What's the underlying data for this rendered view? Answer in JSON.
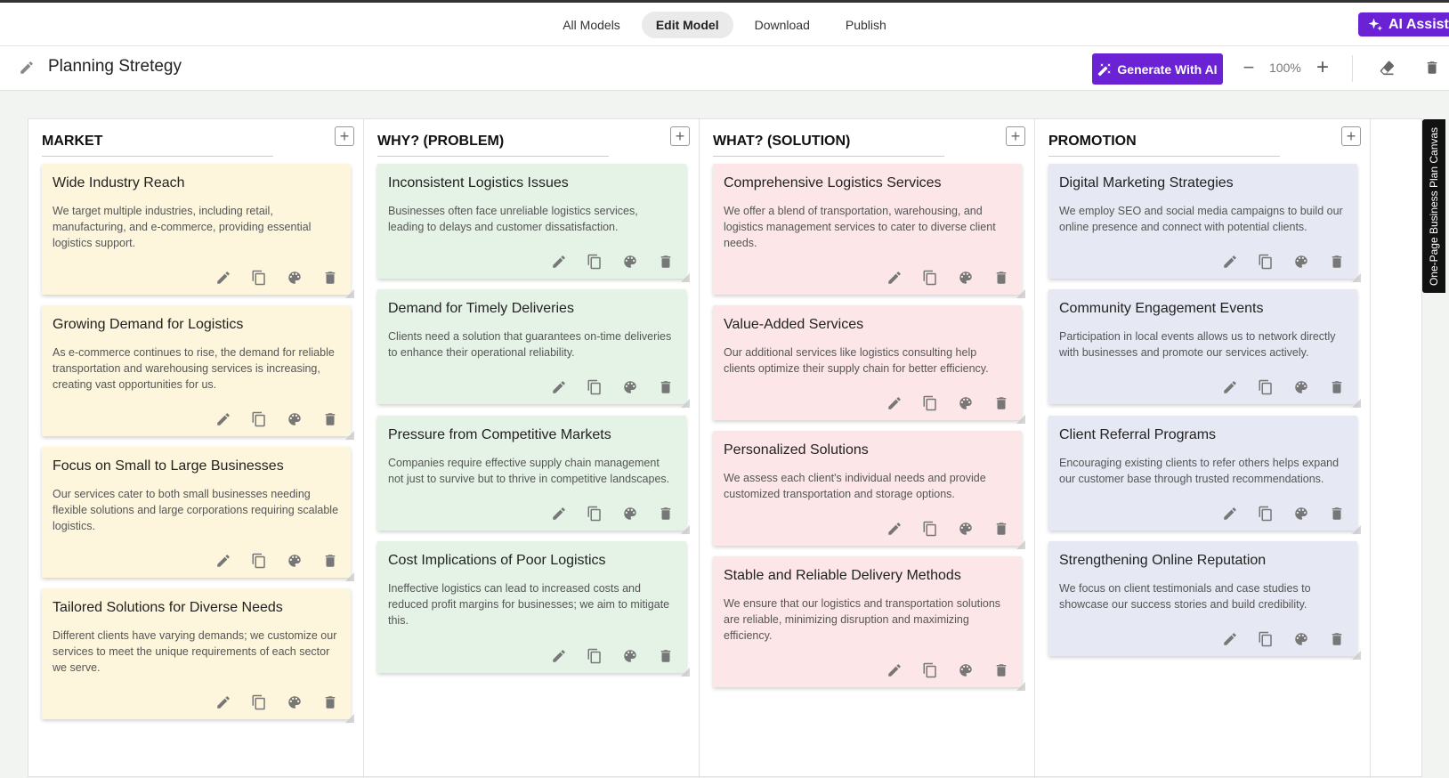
{
  "nav": {
    "items": [
      "All Models",
      "Edit Model",
      "Download",
      "Publish"
    ],
    "active": "Edit Model",
    "ai_assist": "AI Assist"
  },
  "toolbar": {
    "title": "Planning Stretegy",
    "generate_label": "Generate With AI",
    "zoom": "100%"
  },
  "side_tab": "One-Page Business Plan Canvas",
  "columns": [
    {
      "header": "MARKET",
      "color": "#fdf6dc",
      "cards": [
        {
          "title": "Wide Industry Reach",
          "desc": "We target multiple industries, including retail, manufacturing, and e-commerce, providing essential logistics support."
        },
        {
          "title": "Growing Demand for Logistics",
          "desc": "As e-commerce continues to rise, the demand for reliable transportation and warehousing services is increasing, creating vast opportunities for us."
        },
        {
          "title": "Focus on Small to Large Businesses",
          "desc": "Our services cater to both small businesses needing flexible solutions and large corporations requiring scalable logistics."
        },
        {
          "title": "Tailored Solutions for Diverse Needs",
          "desc": "Different clients have varying demands; we customize our services to meet the unique requirements of each sector we serve."
        }
      ]
    },
    {
      "header": "WHY? (PROBLEM)",
      "color": "#e4f3e6",
      "cards": [
        {
          "title": "Inconsistent Logistics Issues",
          "desc": "Businesses often face unreliable logistics services, leading to delays and customer dissatisfaction."
        },
        {
          "title": "Demand for Timely Deliveries",
          "desc": "Clients need a solution that guarantees on-time deliveries to enhance their operational reliability."
        },
        {
          "title": "Pressure from Competitive Markets",
          "desc": "Companies require effective supply chain management not just to survive but to thrive in competitive landscapes."
        },
        {
          "title": "Cost Implications of Poor Logistics",
          "desc": "Ineffective logistics can lead to increased costs and reduced profit margins for businesses; we aim to mitigate this."
        }
      ]
    },
    {
      "header": "WHAT? (SOLUTION)",
      "color": "#fde6e8",
      "cards": [
        {
          "title": "Comprehensive Logistics Services",
          "desc": "We offer a blend of transportation, warehousing, and logistics management services to cater to diverse client needs."
        },
        {
          "title": "Value-Added Services",
          "desc": "Our additional services like logistics consulting help clients optimize their supply chain for better efficiency."
        },
        {
          "title": "Personalized Solutions",
          "desc": "We assess each client's individual needs and provide customized transportation and storage options."
        },
        {
          "title": "Stable and Reliable Delivery Methods",
          "desc": "We ensure that our logistics and transportation solutions are reliable, minimizing disruption and maximizing efficiency."
        }
      ]
    },
    {
      "header": "PROMOTION",
      "color": "#e6e8f4",
      "cards": [
        {
          "title": "Digital Marketing Strategies",
          "desc": "We employ SEO and social media campaigns to build our online presence and connect with potential clients."
        },
        {
          "title": "Community Engagement Events",
          "desc": "Participation in local events allows us to network directly with businesses and promote our services actively."
        },
        {
          "title": "Client Referral Programs",
          "desc": "Encouraging existing clients to refer others helps expand our customer base through trusted recommendations."
        },
        {
          "title": "Strengthening Online Reputation",
          "desc": "We focus on client testimonials and case studies to showcase our success stories and build credibility."
        }
      ]
    }
  ]
}
